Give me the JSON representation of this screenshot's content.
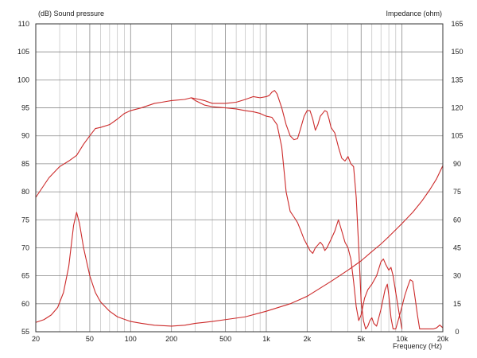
{
  "chart_data": {
    "type": "line",
    "title": "",
    "xlabel": "Frequency (Hz)",
    "ylabel": "(dB) Sound pressure",
    "y2label": "Impedance (ohm)",
    "x_scale": "log",
    "xlim": [
      20,
      20000
    ],
    "ylim": [
      55,
      110
    ],
    "y2lim": [
      0,
      165
    ],
    "grid": true,
    "x_ticks": [
      {
        "value": 20,
        "label": "20"
      },
      {
        "value": 50,
        "label": "50"
      },
      {
        "value": 100,
        "label": "100"
      },
      {
        "value": 200,
        "label": "200"
      },
      {
        "value": 500,
        "label": "500"
      },
      {
        "value": 1000,
        "label": "1k"
      },
      {
        "value": 2000,
        "label": "2k"
      },
      {
        "value": 5000,
        "label": "5k"
      },
      {
        "value": 10000,
        "label": "10k"
      },
      {
        "value": 20000,
        "label": "20k"
      }
    ],
    "x_minor_ticks": [
      30,
      40,
      60,
      70,
      80,
      90,
      300,
      400,
      600,
      700,
      800,
      900,
      3000,
      4000,
      6000,
      7000,
      8000,
      9000
    ],
    "y_ticks": [
      "55",
      "60",
      "65",
      "70",
      "75",
      "80",
      "85",
      "90",
      "95",
      "100",
      "105",
      "110"
    ],
    "y2_ticks": [
      "0",
      "15",
      "30",
      "45",
      "60",
      "75",
      "90",
      "105",
      "120",
      "135",
      "150",
      "165"
    ],
    "series": [
      {
        "axis": "left",
        "color": "#cc2a2a",
        "points": [
          [
            20,
            79
          ],
          [
            25,
            82.5
          ],
          [
            30,
            84.5
          ],
          [
            35,
            85.5
          ],
          [
            40,
            86.5
          ],
          [
            45,
            88.5
          ],
          [
            50,
            90
          ],
          [
            55,
            91.3
          ],
          [
            60,
            91.5
          ],
          [
            70,
            92
          ],
          [
            80,
            93
          ],
          [
            90,
            94
          ],
          [
            100,
            94.5
          ],
          [
            120,
            95
          ],
          [
            150,
            95.8
          ],
          [
            170,
            96
          ],
          [
            200,
            96.3
          ],
          [
            250,
            96.5
          ],
          [
            280,
            96.8
          ],
          [
            300,
            96.3
          ],
          [
            350,
            95.5
          ],
          [
            400,
            95.2
          ],
          [
            500,
            95
          ],
          [
            600,
            94.8
          ],
          [
            700,
            94.5
          ],
          [
            800,
            94.3
          ],
          [
            900,
            94
          ],
          [
            1000,
            93.5
          ],
          [
            1100,
            93.3
          ],
          [
            1200,
            92
          ],
          [
            1300,
            88
          ],
          [
            1400,
            80
          ],
          [
            1500,
            76.5
          ],
          [
            1600,
            75.5
          ],
          [
            1700,
            74.5
          ],
          [
            1800,
            73
          ],
          [
            1900,
            71.5
          ],
          [
            2000,
            70.5
          ],
          [
            2100,
            69.5
          ],
          [
            2200,
            69
          ],
          [
            2300,
            70
          ],
          [
            2400,
            70.5
          ],
          [
            2500,
            71
          ],
          [
            2600,
            70.5
          ],
          [
            2700,
            69.5
          ],
          [
            2800,
            70
          ],
          [
            3000,
            71.5
          ],
          [
            3200,
            73
          ],
          [
            3400,
            75
          ],
          [
            3600,
            73
          ],
          [
            3800,
            71
          ],
          [
            4000,
            70
          ],
          [
            4200,
            68
          ],
          [
            4400,
            64
          ],
          [
            4600,
            59.5
          ],
          [
            4800,
            57
          ],
          [
            5000,
            58
          ],
          [
            5300,
            61
          ],
          [
            5600,
            62.5
          ],
          [
            6000,
            63.5
          ],
          [
            6500,
            65
          ],
          [
            7000,
            67.5
          ],
          [
            7300,
            68
          ],
          [
            7600,
            67
          ],
          [
            8000,
            66
          ],
          [
            8300,
            66.5
          ],
          [
            8600,
            65
          ],
          [
            9000,
            62
          ],
          [
            9500,
            58.5
          ],
          [
            10000,
            55.5
          ]
        ]
      },
      {
        "axis": "left",
        "color": "#cc2a2a",
        "points": [
          [
            280,
            96.8
          ],
          [
            350,
            96.3
          ],
          [
            400,
            95.8
          ],
          [
            500,
            95.8
          ],
          [
            600,
            96
          ],
          [
            700,
            96.5
          ],
          [
            800,
            97
          ],
          [
            900,
            96.8
          ],
          [
            1000,
            97
          ],
          [
            1050,
            97.2
          ],
          [
            1100,
            97.8
          ],
          [
            1150,
            98.1
          ],
          [
            1200,
            97.5
          ],
          [
            1300,
            95
          ],
          [
            1400,
            92
          ],
          [
            1500,
            90
          ],
          [
            1600,
            89.3
          ],
          [
            1700,
            89.5
          ],
          [
            1800,
            91.5
          ],
          [
            1900,
            93.5
          ],
          [
            2000,
            94.5
          ],
          [
            2100,
            94.5
          ],
          [
            2200,
            93
          ],
          [
            2300,
            91
          ],
          [
            2400,
            92
          ],
          [
            2500,
            93.5
          ],
          [
            2600,
            94
          ],
          [
            2700,
            94.5
          ],
          [
            2800,
            94.3
          ],
          [
            2900,
            93
          ],
          [
            3000,
            91.5
          ],
          [
            3200,
            90.5
          ],
          [
            3400,
            88
          ],
          [
            3600,
            86
          ],
          [
            3800,
            85.5
          ],
          [
            4000,
            86.3
          ],
          [
            4200,
            85
          ],
          [
            4400,
            84.5
          ],
          [
            4600,
            79
          ],
          [
            4800,
            70
          ],
          [
            5000,
            60.5
          ],
          [
            5200,
            57
          ],
          [
            5400,
            55.5
          ],
          [
            5600,
            56
          ],
          [
            5800,
            57
          ],
          [
            6000,
            57.5
          ],
          [
            6200,
            56.5
          ],
          [
            6500,
            56
          ],
          [
            7000,
            59
          ],
          [
            7500,
            62.5
          ],
          [
            7800,
            63.5
          ],
          [
            8000,
            61.5
          ],
          [
            8300,
            57.5
          ],
          [
            8600,
            55.5
          ],
          [
            9000,
            55.5
          ],
          [
            9500,
            57.5
          ],
          [
            10000,
            59.5
          ],
          [
            10500,
            61.5
          ],
          [
            11000,
            63
          ],
          [
            11500,
            64.3
          ],
          [
            12000,
            64
          ],
          [
            12500,
            61
          ],
          [
            13000,
            58
          ],
          [
            13500,
            55.5
          ],
          [
            14000,
            55.5
          ],
          [
            15000,
            55.5
          ],
          [
            16000,
            55.5
          ],
          [
            17000,
            55.5
          ],
          [
            18000,
            55.7
          ],
          [
            19000,
            56.2
          ],
          [
            20000,
            55.7
          ]
        ]
      },
      {
        "axis": "right",
        "color": "#cc2a2a",
        "points": [
          [
            20,
            5
          ],
          [
            23,
            6.5
          ],
          [
            26,
            9
          ],
          [
            29,
            13
          ],
          [
            32,
            21
          ],
          [
            35,
            35
          ],
          [
            38,
            57
          ],
          [
            40,
            64
          ],
          [
            42,
            58
          ],
          [
            45,
            45
          ],
          [
            50,
            30
          ],
          [
            55,
            21
          ],
          [
            60,
            16
          ],
          [
            70,
            11
          ],
          [
            80,
            8
          ],
          [
            100,
            5.5
          ],
          [
            120,
            4.5
          ],
          [
            150,
            3.5
          ],
          [
            200,
            3
          ],
          [
            250,
            3.5
          ],
          [
            300,
            4.5
          ],
          [
            400,
            5.5
          ],
          [
            500,
            6.5
          ],
          [
            700,
            8
          ],
          [
            1000,
            11
          ],
          [
            1500,
            15
          ],
          [
            2000,
            19
          ],
          [
            3000,
            27
          ],
          [
            4000,
            33
          ],
          [
            5000,
            38
          ],
          [
            6000,
            43
          ],
          [
            7000,
            47
          ],
          [
            8000,
            51
          ],
          [
            10000,
            58
          ],
          [
            12000,
            64
          ],
          [
            14000,
            70
          ],
          [
            16000,
            76
          ],
          [
            18000,
            82
          ],
          [
            20000,
            89
          ]
        ]
      }
    ]
  }
}
